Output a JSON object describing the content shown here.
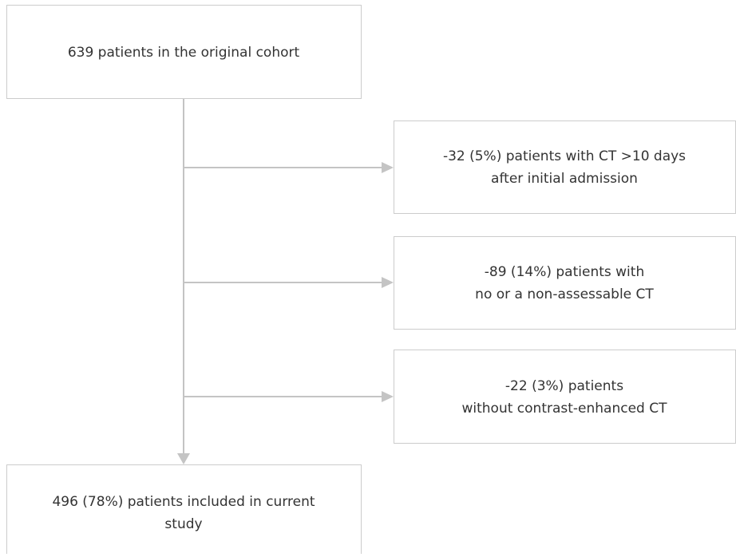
{
  "nodes": [
    {
      "label": "639 patients in the original cohort"
    },
    {
      "label": [
        "-32 (5%) patients with CT >10 days",
        "after initial admission"
      ]
    },
    {
      "label": [
        "-89 (14%) patients with",
        "no or a non-assessable CT"
      ]
    },
    {
      "label": [
        "-22 (3%) patients",
        "without contrast-enhanced CT"
      ]
    },
    {
      "label": [
        "496 (78%) patients included in current",
        "study"
      ]
    }
  ]
}
